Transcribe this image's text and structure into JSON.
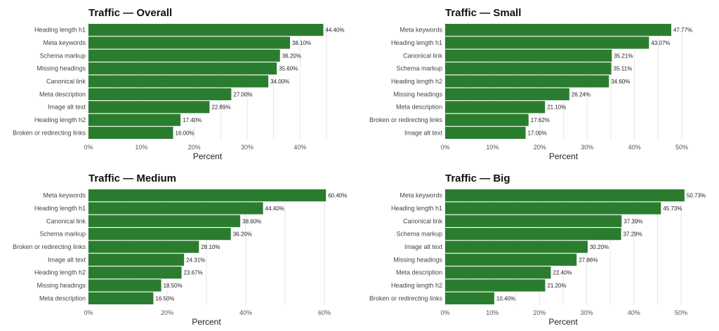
{
  "chart_data": [
    {
      "type": "bar",
      "orientation": "horizontal",
      "title": "Traffic — Overall",
      "xlabel": "Percent",
      "xlim": [
        0,
        45
      ],
      "xticks": [
        "0%",
        "10%",
        "20%",
        "30%",
        "40%"
      ],
      "grid": true,
      "color": "#2a7d2e",
      "categories": [
        "Heading length h1",
        "Meta keywords",
        "Schema markup",
        "Missing headings",
        "Canonical link",
        "Meta description",
        "Image alt text",
        "Heading length h2",
        "Broken or redirecting links"
      ],
      "values": [
        44.4,
        38.1,
        36.2,
        35.6,
        34.0,
        27.0,
        22.89,
        17.4,
        16.0
      ],
      "labels": [
        "44.40%",
        "38.10%",
        "36.20%",
        "35.60%",
        "34.00%",
        "27.00%",
        "22.89%",
        "17.40%",
        "16.00%"
      ]
    },
    {
      "type": "bar",
      "orientation": "horizontal",
      "title": "Traffic — Small",
      "xlabel": "Percent",
      "xlim": [
        0,
        50
      ],
      "xticks": [
        "0%",
        "10%",
        "20%",
        "30%",
        "40%",
        "50%"
      ],
      "grid": true,
      "color": "#2a7d2e",
      "categories": [
        "Meta keywords",
        "Heading length h1",
        "Canonical link",
        "Schema markup",
        "Heading length h2",
        "Missing headings",
        "Meta description",
        "Broken or redirecting links",
        "Image alt text"
      ],
      "values": [
        47.77,
        43.07,
        35.21,
        35.11,
        34.6,
        26.24,
        21.1,
        17.62,
        17.0
      ],
      "labels": [
        "47.77%",
        "43.07%",
        "35.21%",
        "35.11%",
        "34.60%",
        "26.24%",
        "21.10%",
        "17.62%",
        "17.00%"
      ]
    },
    {
      "type": "bar",
      "orientation": "horizontal",
      "title": "Traffic — Medium",
      "xlabel": "Percent",
      "xlim": [
        0,
        60
      ],
      "xticks": [
        "0%",
        "20%",
        "40%",
        "60%"
      ],
      "grid": true,
      "color": "#2a7d2e",
      "categories": [
        "Meta keywords",
        "Heading length h1",
        "Canonical link",
        "Schema markup",
        "Broken or redirecting links",
        "Image alt text",
        "Heading length h2",
        "Missing headings",
        "Meta description"
      ],
      "values": [
        60.4,
        44.4,
        38.6,
        36.2,
        28.1,
        24.31,
        23.67,
        18.5,
        16.5
      ],
      "labels": [
        "60.40%",
        "44.40%",
        "38.60%",
        "36.20%",
        "28.10%",
        "24.31%",
        "23.67%",
        "18.50%",
        "16.50%"
      ]
    },
    {
      "type": "bar",
      "orientation": "horizontal",
      "title": "Traffic — Big",
      "xlabel": "Percent",
      "xlim": [
        0,
        50
      ],
      "xticks": [
        "0%",
        "10%",
        "20%",
        "30%",
        "40%",
        "50%"
      ],
      "grid": true,
      "color": "#2a7d2e",
      "categories": [
        "Meta keywords",
        "Heading length h1",
        "Canonical link",
        "Schema markup",
        "Image alt text",
        "Missing headings",
        "Meta description",
        "Heading length h2",
        "Broken or redirecting links"
      ],
      "values": [
        50.73,
        45.73,
        37.39,
        37.29,
        30.2,
        27.86,
        22.4,
        21.2,
        10.4
      ],
      "labels": [
        "50.73%",
        "45.73%",
        "37.39%",
        "37.29%",
        "30.20%",
        "27.86%",
        "22.40%",
        "21.20%",
        "10.40%"
      ]
    }
  ]
}
